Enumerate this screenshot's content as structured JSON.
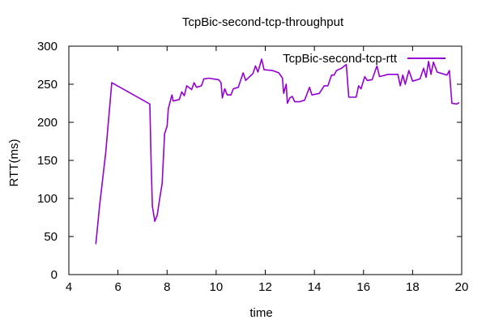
{
  "chart_data": {
    "type": "line",
    "title": "TcpBic-second-tcp-throughput",
    "xlabel": "time",
    "ylabel": "RTT(ms)",
    "xlim": [
      4,
      20
    ],
    "ylim": [
      0,
      300
    ],
    "xticks": [
      4,
      6,
      8,
      10,
      12,
      14,
      16,
      18,
      20
    ],
    "yticks": [
      0,
      50,
      100,
      150,
      200,
      250,
      300
    ],
    "grid": false,
    "legend_position": "top-right",
    "series": [
      {
        "name": "TcpBic-second-tcp-rtt",
        "color": "#9400d3",
        "points": [
          [
            5.1,
            40
          ],
          [
            5.25,
            90
          ],
          [
            5.5,
            160
          ],
          [
            5.75,
            252
          ],
          [
            7.3,
            224
          ],
          [
            7.35,
            150
          ],
          [
            7.4,
            90
          ],
          [
            7.5,
            70
          ],
          [
            7.6,
            78
          ],
          [
            7.7,
            100
          ],
          [
            7.8,
            120
          ],
          [
            7.9,
            185
          ],
          [
            8.0,
            195
          ],
          [
            8.05,
            218
          ],
          [
            8.2,
            236
          ],
          [
            8.25,
            228
          ],
          [
            8.5,
            230
          ],
          [
            8.6,
            240
          ],
          [
            8.7,
            235
          ],
          [
            8.8,
            248
          ],
          [
            9.0,
            243
          ],
          [
            9.1,
            252
          ],
          [
            9.2,
            246
          ],
          [
            9.4,
            248
          ],
          [
            9.5,
            257
          ],
          [
            9.7,
            258
          ],
          [
            10.1,
            256
          ],
          [
            10.2,
            252
          ],
          [
            10.25,
            232
          ],
          [
            10.35,
            244
          ],
          [
            10.45,
            236
          ],
          [
            10.6,
            236
          ],
          [
            10.7,
            244
          ],
          [
            10.9,
            246
          ],
          [
            11.1,
            265
          ],
          [
            11.2,
            255
          ],
          [
            11.5,
            264
          ],
          [
            11.6,
            274
          ],
          [
            11.7,
            266
          ],
          [
            11.85,
            283
          ],
          [
            11.95,
            269
          ],
          [
            12.3,
            268
          ],
          [
            12.55,
            265
          ],
          [
            12.7,
            258
          ],
          [
            12.75,
            238
          ],
          [
            12.85,
            250
          ],
          [
            12.9,
            225
          ],
          [
            13.0,
            232
          ],
          [
            13.1,
            234
          ],
          [
            13.2,
            227
          ],
          [
            13.4,
            227
          ],
          [
            13.6,
            229
          ],
          [
            13.8,
            246
          ],
          [
            13.9,
            236
          ],
          [
            14.2,
            238
          ],
          [
            14.4,
            248
          ],
          [
            14.55,
            248
          ],
          [
            14.7,
            262
          ],
          [
            14.8,
            262
          ],
          [
            14.9,
            268
          ],
          [
            15.1,
            271
          ],
          [
            15.3,
            276
          ],
          [
            15.4,
            233
          ],
          [
            15.7,
            233
          ],
          [
            15.8,
            248
          ],
          [
            15.9,
            244
          ],
          [
            16.05,
            260
          ],
          [
            16.15,
            255
          ],
          [
            16.35,
            256
          ],
          [
            16.55,
            274
          ],
          [
            16.65,
            260
          ],
          [
            17.0,
            263
          ],
          [
            17.4,
            263
          ],
          [
            17.5,
            248
          ],
          [
            17.6,
            262
          ],
          [
            17.7,
            250
          ],
          [
            17.85,
            268
          ],
          [
            18.0,
            254
          ],
          [
            18.3,
            257
          ],
          [
            18.45,
            271
          ],
          [
            18.55,
            259
          ],
          [
            18.65,
            280
          ],
          [
            18.75,
            263
          ],
          [
            18.85,
            279
          ],
          [
            19.0,
            266
          ],
          [
            19.4,
            262
          ],
          [
            19.5,
            268
          ],
          [
            19.6,
            225
          ],
          [
            19.8,
            224
          ],
          [
            19.9,
            226
          ]
        ]
      }
    ]
  }
}
